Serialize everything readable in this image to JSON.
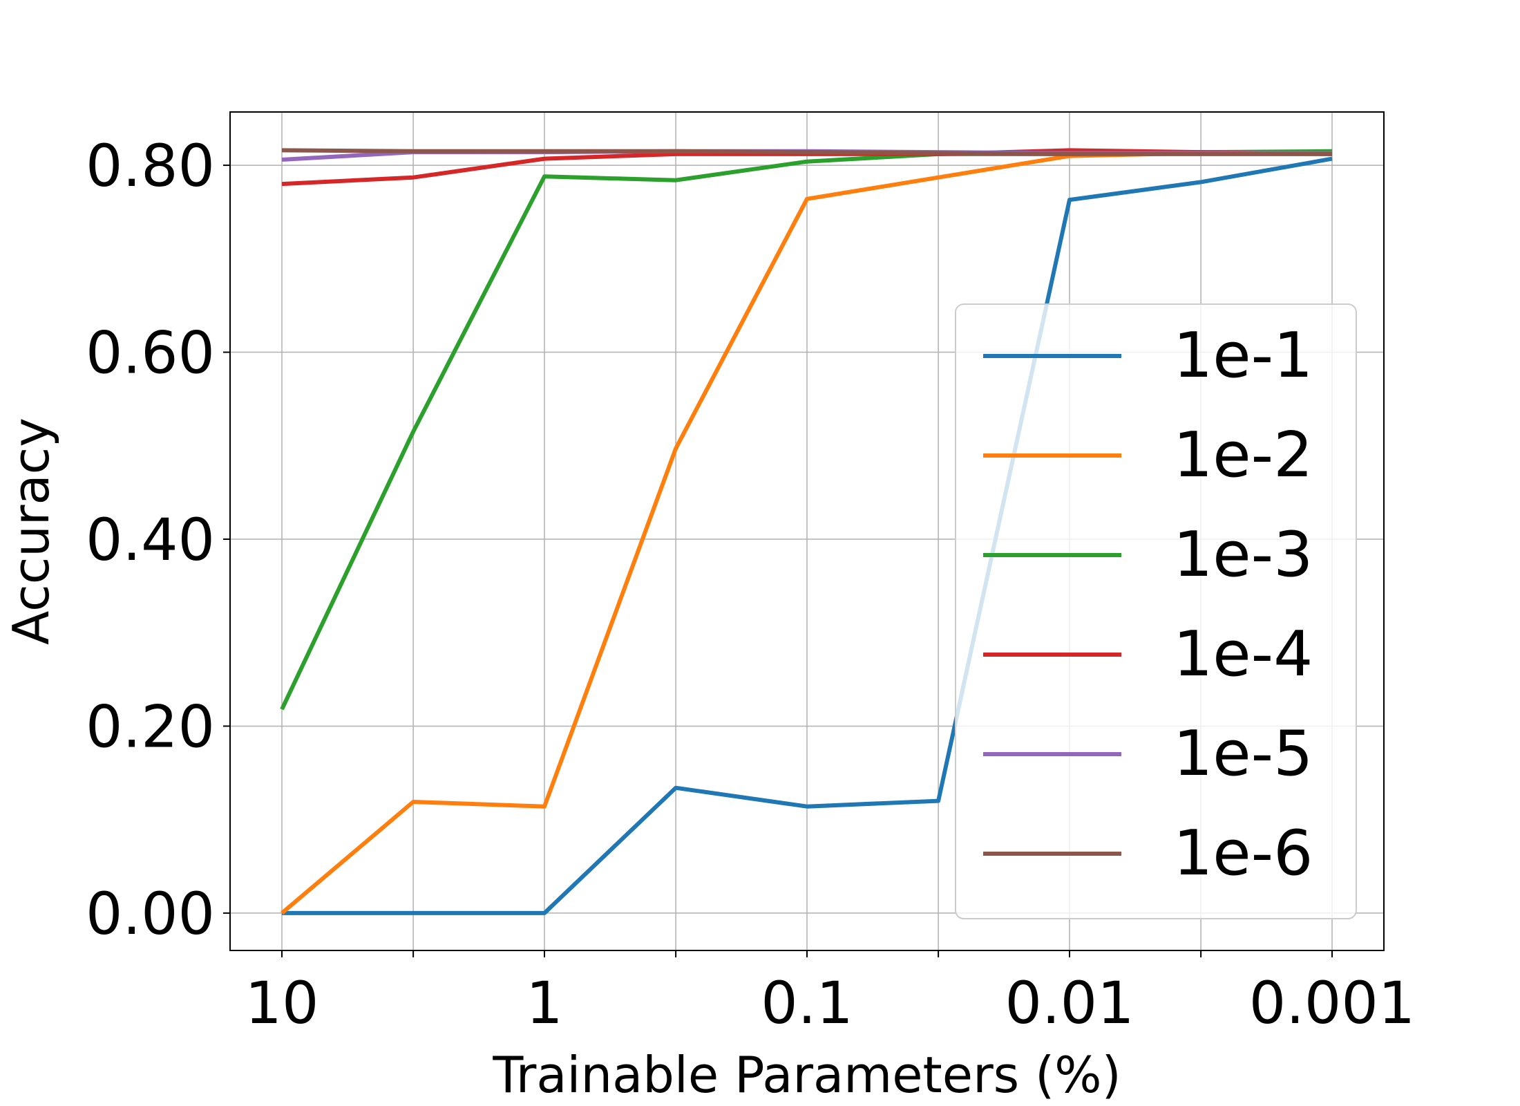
{
  "chart_data": {
    "type": "line",
    "title": "",
    "xlabel": "Trainable Parameters (%)",
    "ylabel": "Accuracy",
    "x_scale": "log",
    "x_direction": "descending",
    "x": [
      10,
      3.16,
      1,
      0.316,
      0.1,
      0.0316,
      0.01,
      0.00316,
      0.001
    ],
    "x_ticks": [
      10,
      1,
      0.1,
      0.01,
      0.001
    ],
    "x_tick_labels": [
      "10",
      "1",
      "0.1",
      "0.01",
      "0.001"
    ],
    "ylim": [
      -0.04,
      0.857
    ],
    "y_ticks": [
      0.0,
      0.2,
      0.4,
      0.6,
      0.8
    ],
    "y_tick_labels": [
      "0.00",
      "0.20",
      "0.40",
      "0.60",
      "0.80"
    ],
    "grid": true,
    "legend_position": "center-right",
    "series": [
      {
        "name": "1e-1",
        "color": "#1f77b4",
        "values": [
          0.0,
          0.0,
          0.0,
          0.134,
          0.114,
          0.12,
          0.763,
          0.782,
          0.807
        ]
      },
      {
        "name": "1e-2",
        "color": "#ff7f0e",
        "values": [
          0.0,
          0.119,
          0.114,
          0.497,
          0.764,
          0.787,
          0.81,
          0.813,
          0.812
        ]
      },
      {
        "name": "1e-3",
        "color": "#2ca02c",
        "values": [
          0.218,
          0.515,
          0.788,
          0.784,
          0.804,
          0.812,
          0.812,
          0.814,
          0.815
        ]
      },
      {
        "name": "1e-4",
        "color": "#d62728",
        "values": [
          0.78,
          0.787,
          0.807,
          0.812,
          0.812,
          0.812,
          0.816,
          0.814,
          0.812
        ]
      },
      {
        "name": "1e-5",
        "color": "#9467bd",
        "values": [
          0.806,
          0.814,
          0.814,
          0.815,
          0.815,
          0.814,
          0.813,
          0.813,
          0.813
        ]
      },
      {
        "name": "1e-6",
        "color": "#8c564b",
        "values": [
          0.816,
          0.815,
          0.815,
          0.815,
          0.814,
          0.813,
          0.812,
          0.812,
          0.812
        ]
      }
    ]
  }
}
